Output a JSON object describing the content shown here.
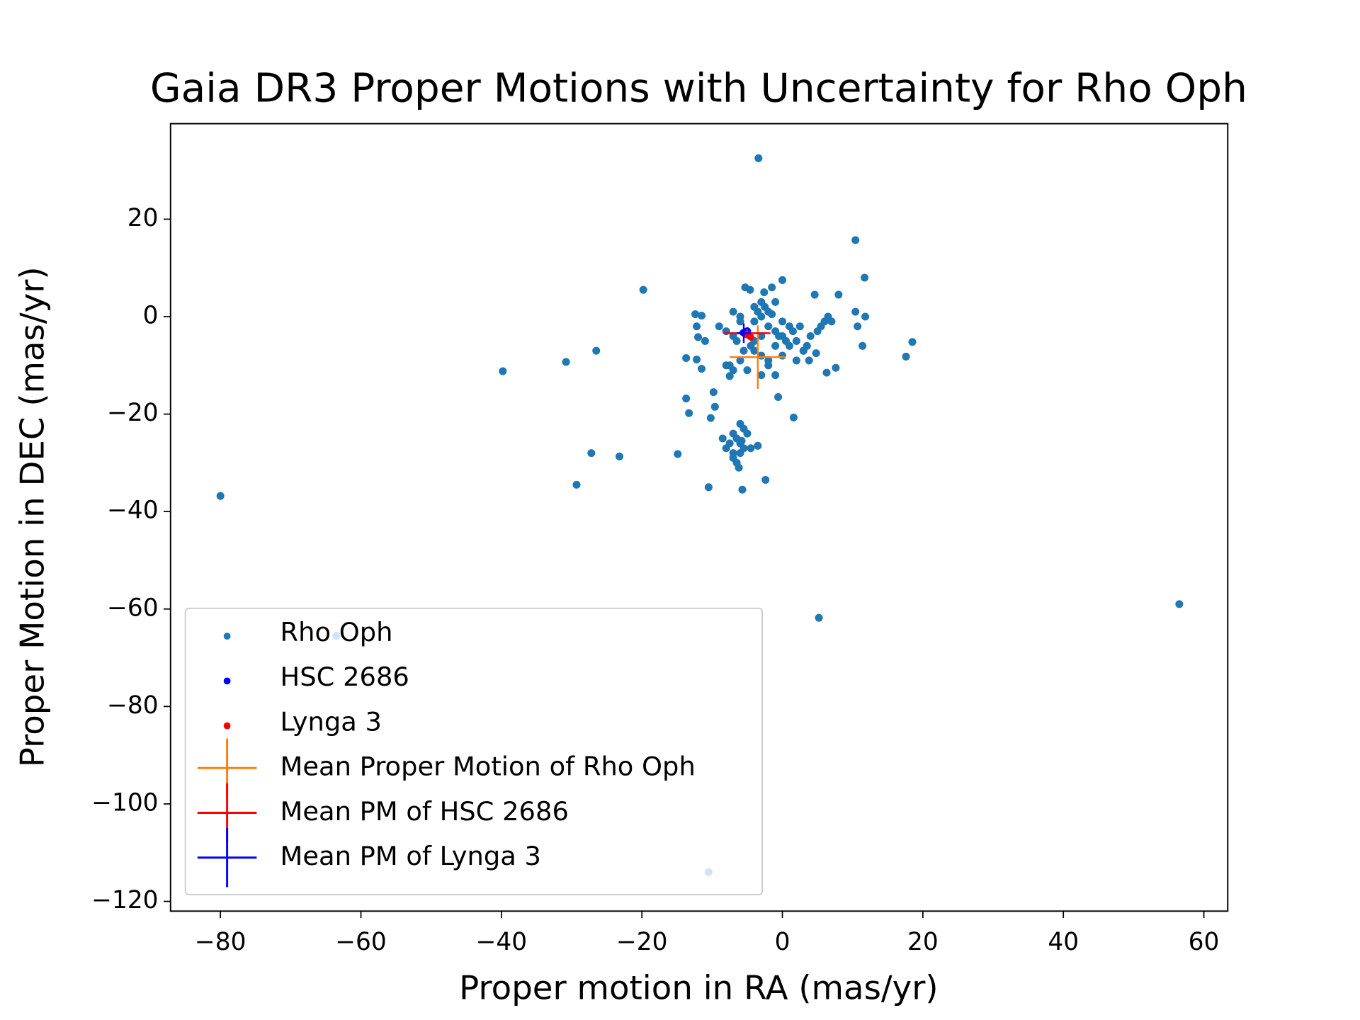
{
  "chart_data": {
    "type": "scatter",
    "title": "Gaia DR3 Proper Motions with Uncertainty for Rho Oph",
    "xlabel": "Proper motion in RA (mas/yr)",
    "ylabel": "Proper Motion in DEC (mas/yr)",
    "xlim": [
      -87.1,
      63.4
    ],
    "ylim": [
      -122,
      39.6
    ],
    "xticks": [
      {
        "value": -80,
        "label": "−80"
      },
      {
        "value": -60,
        "label": "−60"
      },
      {
        "value": -40,
        "label": "−40"
      },
      {
        "value": -20,
        "label": "−20"
      },
      0,
      20,
      40,
      60
    ],
    "yticks": [
      {
        "value": -120,
        "label": "−120"
      },
      {
        "value": -100,
        "label": "−100"
      },
      {
        "value": -80,
        "label": "−80"
      },
      {
        "value": -60,
        "label": "−60"
      },
      {
        "value": -40,
        "label": "−40"
      },
      {
        "value": -20,
        "label": "−20"
      },
      0,
      20
    ],
    "legend": "lower left",
    "series": [
      {
        "name": "Rho Oph",
        "color": "#1f77b4",
        "x": [
          -4,
          -3,
          -2,
          -1,
          0,
          1,
          -5,
          -6,
          -7,
          -3.5,
          -2.5,
          -1.5,
          -0.5,
          0.5,
          1.5,
          2.5,
          -4.5,
          -5.5,
          -6.5,
          -8,
          -9,
          -3,
          -2,
          -1,
          0,
          1,
          2,
          3,
          4,
          5,
          6,
          -4,
          -3,
          -2,
          -1,
          -6,
          -7,
          -8,
          -2,
          -1,
          0,
          2,
          3,
          -3,
          -5,
          -4,
          6.5,
          7,
          5.5,
          3.5,
          -7,
          -6,
          -4,
          -3,
          -7,
          -6.5,
          -6,
          -5.5,
          -7.5,
          -8,
          -6,
          -5,
          -7,
          -6.5,
          -5.5,
          -8.5,
          -4.5,
          -6,
          -7,
          -3.5,
          -6.2,
          -5.8,
          -80,
          -39.8,
          -30.8,
          -26.5,
          -19.8,
          -29.3,
          -27.2,
          -23.2,
          -14.9,
          -10.5,
          -5.7,
          -2.4,
          -3.4,
          10.4,
          11.7,
          0,
          -1.5,
          -5.3,
          -4.6,
          -2.6,
          4.6,
          8,
          11.8,
          10.4,
          10.7,
          11.4,
          17.6,
          18.5,
          7.6,
          6.3,
          4.8,
          3.8,
          1.6,
          -0.6,
          -10.2,
          -9.6,
          -13.7,
          -13.3,
          -9.8,
          -11.5,
          -12.2,
          -13.7,
          -11,
          -12.2,
          -12,
          -12.4,
          -11.5,
          -7.5,
          -7.5,
          5.2,
          56.5,
          -63.5,
          -10.5
        ],
        "y": [
          -1,
          0,
          -2,
          -3,
          -1,
          -2,
          -3,
          -1,
          -4,
          1,
          2,
          0.5,
          -4,
          -5,
          -3,
          -2,
          -6,
          -7,
          -5,
          -3,
          -2,
          -8,
          -9,
          -6,
          -4,
          -6,
          -5,
          -7,
          -4,
          -3,
          -1,
          2,
          3,
          1,
          3,
          -9,
          -11,
          -10,
          -10,
          -12,
          -8,
          -9,
          -7,
          -12,
          -11,
          -7,
          0,
          -1,
          -2,
          -6,
          1,
          0,
          -5,
          -4,
          -24,
          -25,
          -26,
          -27,
          -26,
          -27,
          -28,
          -24,
          -29,
          -30,
          -23,
          -25,
          -27,
          -22,
          -28,
          -26.5,
          -31,
          -25.5,
          -36.8,
          -11.2,
          -9.3,
          -7,
          5.5,
          -34.5,
          -28,
          -28.7,
          -28.2,
          -35,
          -35.5,
          -33.5,
          32.5,
          15.7,
          8,
          7.5,
          6,
          6,
          5.5,
          5,
          4.5,
          4.5,
          0,
          1,
          -2,
          -6,
          -8.2,
          -5.2,
          -10.5,
          -11.5,
          -7.5,
          -9,
          -20.7,
          -16.5,
          -20.8,
          -18.5,
          -16.8,
          -19.8,
          -15.5,
          -10.7,
          -8.8,
          -8.5,
          -5,
          -2,
          -4.2,
          0.5,
          0.2,
          -10,
          -12.2,
          -61.8,
          -59,
          -65.5,
          -114
        ]
      },
      {
        "name": "HSC 2686",
        "color": "#0000ff",
        "x": [
          -5.6,
          -5.3,
          -5.0
        ],
        "y": [
          -3.3,
          -3.6,
          -2.9
        ]
      },
      {
        "name": "Lynga 3",
        "color": "#ff0000",
        "x": [
          -4.8,
          -5.1,
          -4.5
        ],
        "y": [
          -3.9,
          -3.6,
          -4.2
        ]
      },
      {
        "name": "Mean Proper Motion of Rho Oph",
        "type": "errorbar",
        "color": "#ff7f0e",
        "x": [
          -3.5
        ],
        "y": [
          -8.3
        ],
        "xerr": [
          4
        ],
        "yerr": [
          6.5
        ]
      },
      {
        "name": "Mean PM of HSC 2686",
        "type": "errorbar",
        "color": "#ff0000",
        "x": [
          -5
        ],
        "y": [
          -3.4
        ],
        "xerr": [
          3.3
        ],
        "yerr": [
          0.8
        ]
      },
      {
        "name": "Mean PM of Lynga 3",
        "type": "errorbar",
        "color": "#0000ff",
        "x": [
          -5.5
        ],
        "y": [
          -3.4
        ],
        "xerr": [
          1
        ],
        "yerr": [
          2
        ]
      }
    ]
  }
}
